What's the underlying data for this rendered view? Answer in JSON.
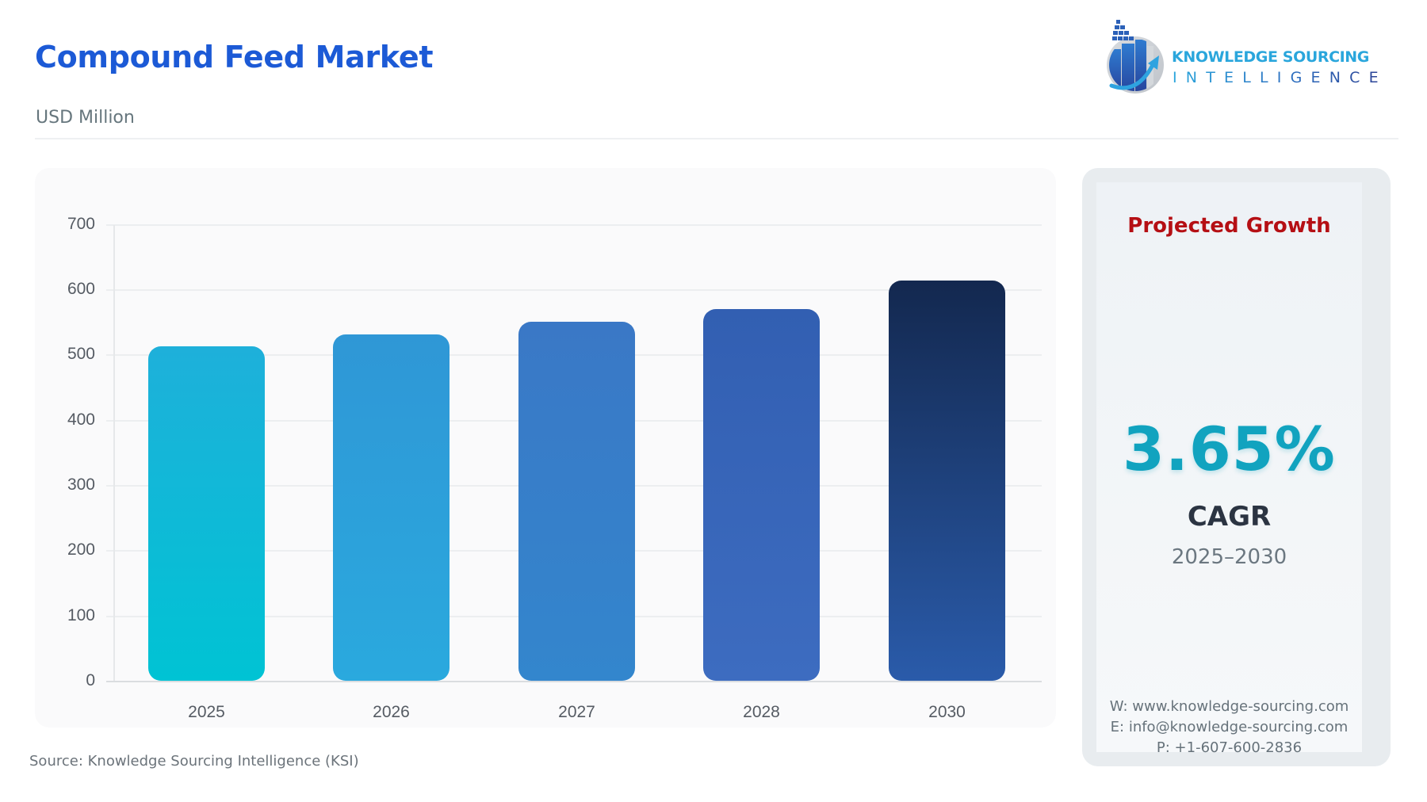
{
  "header": {
    "title": "Compound Feed Market",
    "unit": "USD Million"
  },
  "logo": {
    "line1": "KNOWLEDGE SOURCING",
    "line2": "INTELLIGENCE"
  },
  "chart": {
    "y_ticks": [
      "700",
      "600",
      "500",
      "400",
      "300",
      "200",
      "100",
      "0"
    ],
    "x_labels": [
      "2025",
      "2026",
      "2027",
      "2028",
      "2030"
    ]
  },
  "chart_data": {
    "type": "bar",
    "title": "Compound Feed Market",
    "subtitle": "USD Million",
    "xlabel": "",
    "ylabel": "USD Million",
    "categories": [
      "2025",
      "2026",
      "2027",
      "2028",
      "2030"
    ],
    "values": [
      513,
      531,
      550,
      570,
      614
    ],
    "ylim": [
      0,
      700
    ],
    "yticks": [
      0,
      100,
      200,
      300,
      400,
      500,
      600,
      700
    ],
    "grid": true,
    "legend": "none",
    "colors": [
      {
        "top": "#1EB0DA",
        "bottom": "#00C3D4"
      },
      {
        "top": "#2F97D6",
        "bottom": "#2AA9DE"
      },
      {
        "top": "#3A78C6",
        "bottom": "#3386CD"
      },
      {
        "top": "#325FB2",
        "bottom": "#3D6CC0"
      },
      {
        "top": "#13284F",
        "bottom": "#2A5BAA"
      }
    ]
  },
  "growth": {
    "title": "Projected Growth",
    "value": "3.65%",
    "label": "CAGR",
    "period": "2025–2030",
    "accent_color": "#11A3BF",
    "title_color": "#B50F14"
  },
  "contact": {
    "web": "W: www.knowledge-sourcing.com",
    "email": "E: info@knowledge-sourcing.com",
    "phone": "P: +1-607-600-2836"
  },
  "footer": {
    "source": "Source: Knowledge Sourcing Intelligence (KSI)"
  },
  "colors": {
    "title": "#1C5AD6",
    "brand_light": "#2AA6DC",
    "brand_dark": "#2C3F92"
  }
}
